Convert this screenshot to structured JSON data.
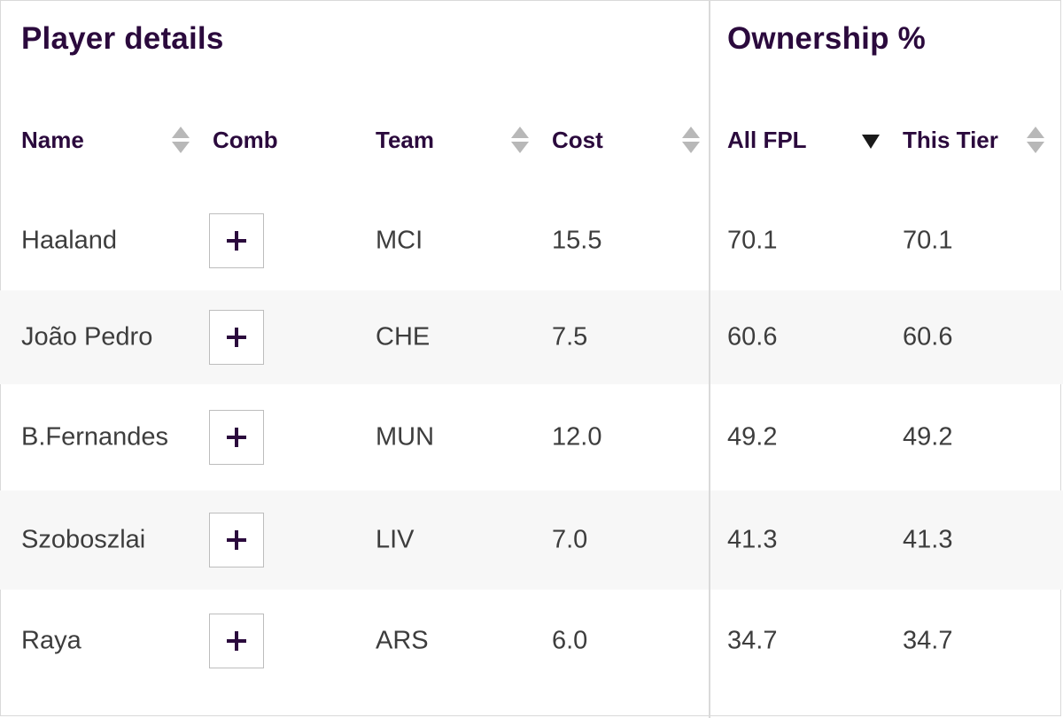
{
  "groups": {
    "player_details": "Player details",
    "ownership": "Ownership %"
  },
  "columns": {
    "name": "Name",
    "comb": "Comb",
    "team": "Team",
    "cost": "Cost",
    "all_fpl": "All FPL",
    "this_tier": "This Tier"
  },
  "sorting": {
    "active_column": "All FPL",
    "direction": "descending"
  },
  "icons": {
    "sort_both": "sort-up-down-icon",
    "sort_desc": "sort-descending-icon",
    "add": "plus-icon"
  },
  "colors": {
    "header_text": "#2b0a3d",
    "cell_text": "#3d3d3d",
    "alt_row": "#f7f7f7",
    "sort_icon": "#b8b8b8"
  },
  "rows": [
    {
      "name": "Haaland",
      "team": "MCI",
      "cost": "15.5",
      "all_fpl": "70.1",
      "this_tier": "70.1"
    },
    {
      "name": "João Pedro",
      "team": "CHE",
      "cost": "7.5",
      "all_fpl": "60.6",
      "this_tier": "60.6"
    },
    {
      "name": "B.Fernandes",
      "team": "MUN",
      "cost": "12.0",
      "all_fpl": "49.2",
      "this_tier": "49.2"
    },
    {
      "name": "Szoboszlai",
      "team": "LIV",
      "cost": "7.0",
      "all_fpl": "41.3",
      "this_tier": "41.3"
    },
    {
      "name": "Raya",
      "team": "ARS",
      "cost": "6.0",
      "all_fpl": "34.7",
      "this_tier": "34.7"
    }
  ]
}
